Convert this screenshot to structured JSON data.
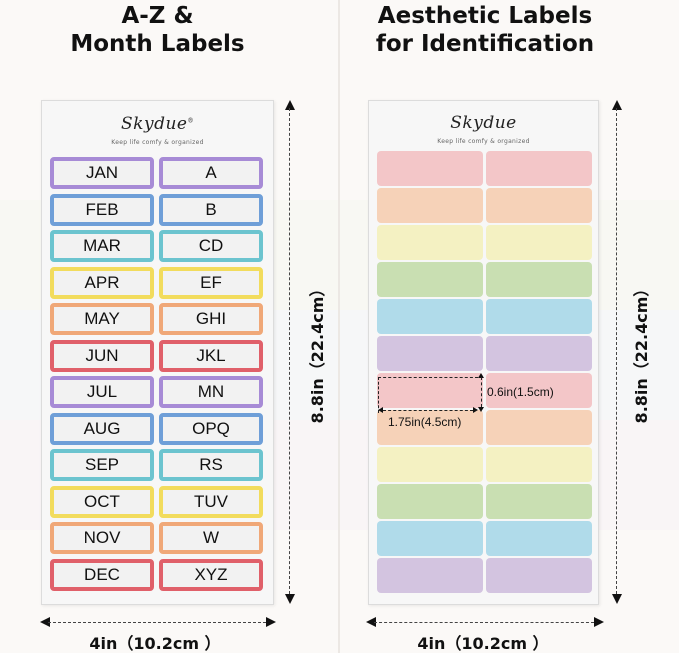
{
  "left": {
    "title_line1": "A-Z &",
    "title_line2": "Month Labels",
    "brand": "Skydue",
    "brand_mark": "®",
    "tagline": "Keep life comfy & organized",
    "rows": [
      {
        "month": "JAN",
        "letters": "A",
        "color": "#a78bd6"
      },
      {
        "month": "FEB",
        "letters": "B",
        "color": "#6f9fd8"
      },
      {
        "month": "MAR",
        "letters": "CD",
        "color": "#6cc4cf"
      },
      {
        "month": "APR",
        "letters": "EF",
        "color": "#f2dc5d"
      },
      {
        "month": "MAY",
        "letters": "GHI",
        "color": "#f0a878"
      },
      {
        "month": "JUN",
        "letters": "JKL",
        "color": "#e0606a"
      },
      {
        "month": "JUL",
        "letters": "MN",
        "color": "#a78bd6"
      },
      {
        "month": "AUG",
        "letters": "OPQ",
        "color": "#6f9fd8"
      },
      {
        "month": "SEP",
        "letters": "RS",
        "color": "#6cc4cf"
      },
      {
        "month": "OCT",
        "letters": "TUV",
        "color": "#f2dc5d"
      },
      {
        "month": "NOV",
        "letters": "W",
        "color": "#f0a878"
      },
      {
        "month": "DEC",
        "letters": "XYZ",
        "color": "#e0606a"
      }
    ],
    "height_label": "8.8in（22.4cm）",
    "width_label": "4in（10.2cm ）"
  },
  "right": {
    "title_line1": "Aesthetic Labels",
    "title_line2": "for Identification",
    "brand": "Skydue",
    "tagline": "Keep life comfy & organized",
    "rows": [
      {
        "color": "#f3c6c8"
      },
      {
        "color": "#f6d2b8"
      },
      {
        "color": "#f4f1c2"
      },
      {
        "color": "#c9dfb2"
      },
      {
        "color": "#b0dbea"
      },
      {
        "color": "#d3c4e0"
      },
      {
        "color": "#f3c6c8"
      },
      {
        "color": "#f6d2b8"
      },
      {
        "color": "#f4f1c2"
      },
      {
        "color": "#c9dfb2"
      },
      {
        "color": "#b0dbea"
      },
      {
        "color": "#d3c4e0"
      }
    ],
    "label_height": "0.6in(1.5cm)",
    "label_width": "1.75in(4.5cm)",
    "height_label": "8.8in（22.4cm）",
    "width_label": "4in（10.2cm ）"
  }
}
